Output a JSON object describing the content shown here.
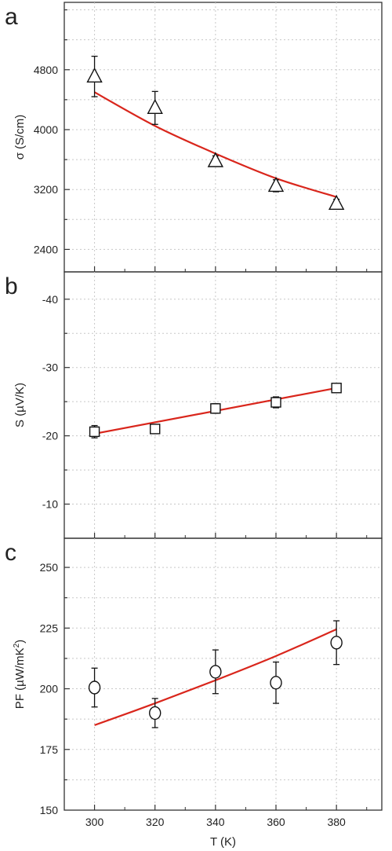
{
  "chart_data": [
    {
      "type": "scatter",
      "panel_label": "a",
      "ylabel": "σ (S/cm)",
      "xlim": [
        290,
        395
      ],
      "ylim": [
        2100,
        5700
      ],
      "y_ticks": [
        2400,
        3200,
        4000,
        4800
      ],
      "grid": true,
      "marker": "triangle",
      "series": [
        {
          "x": [
            300,
            320,
            340,
            360,
            380
          ],
          "y": [
            4710,
            4290,
            3580,
            3250,
            3010
          ],
          "error": [
            270,
            220,
            70,
            80,
            60
          ]
        }
      ],
      "fit": {
        "x": [
          300,
          320,
          340,
          360,
          380
        ],
        "y": [
          4500,
          4050,
          3680,
          3350,
          3100
        ],
        "color": "#d9261c"
      }
    },
    {
      "type": "scatter",
      "panel_label": "b",
      "ylabel": "S (µV/K)",
      "xlim": [
        290,
        395
      ],
      "ylim": [
        -44,
        -5
      ],
      "y_ticks": [
        -40,
        -30,
        -20,
        -10
      ],
      "y_inverted": true,
      "grid": true,
      "marker": "square",
      "series": [
        {
          "x": [
            300,
            320,
            340,
            360,
            380
          ],
          "y": [
            -20.6,
            -21.0,
            -24.0,
            -24.9,
            -27.0
          ],
          "error": [
            0.9,
            0.5,
            0.7,
            0.8,
            0.6
          ]
        }
      ],
      "fit": {
        "x": [
          300,
          380
        ],
        "y": [
          -20.3,
          -27.0
        ],
        "color": "#d9261c"
      }
    },
    {
      "type": "scatter",
      "panel_label": "c",
      "ylabel": "PF (µW/mK",
      "ylabel_sup": "2",
      "ylabel_end": ")",
      "xlabel": "T (K)",
      "xlim": [
        290,
        395
      ],
      "ylim": [
        150,
        262
      ],
      "y_ticks": [
        150,
        175,
        200,
        225,
        250
      ],
      "x_ticks": [
        300,
        320,
        340,
        360,
        380
      ],
      "grid": true,
      "marker": "circle",
      "series": [
        {
          "x": [
            300,
            320,
            340,
            360,
            380
          ],
          "y": [
            200.5,
            190,
            207,
            202.5,
            219
          ],
          "error": [
            8,
            6,
            9,
            8.5,
            9
          ]
        }
      ],
      "fit": {
        "x": [
          300,
          320,
          340,
          360,
          380
        ],
        "y": [
          185,
          194,
          203.5,
          213.5,
          224.5
        ],
        "color": "#d9261c"
      }
    }
  ]
}
